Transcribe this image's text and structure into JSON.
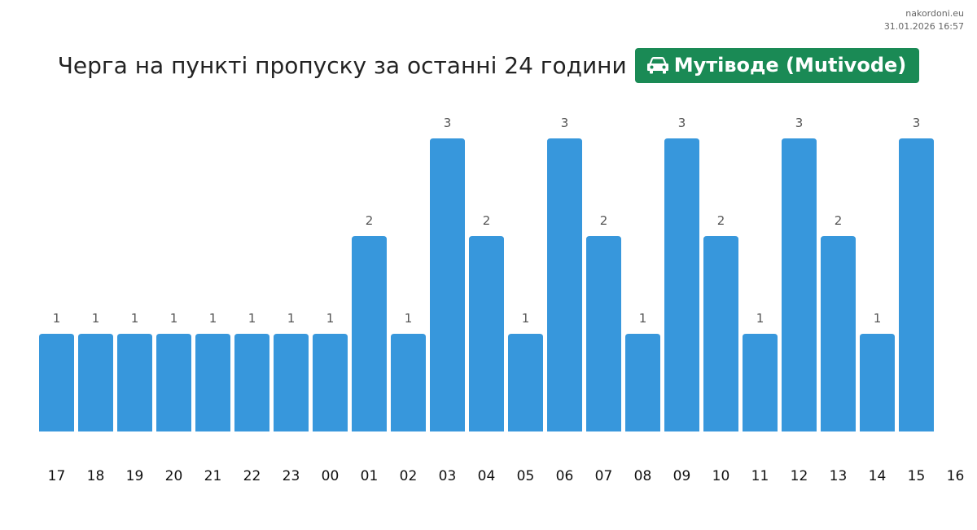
{
  "watermark": {
    "site": "nakordoni.eu",
    "timestamp": "31.01.2026 16:57"
  },
  "header": {
    "title": "Черга на пункті пропуску за останні 24 години",
    "badge_label": "Мутіводе (Mutivode)",
    "badge_icon": "car-icon",
    "badge_color": "#1a8a55"
  },
  "colors": {
    "bar": "#3797dc",
    "value_label": "#555555",
    "tick_label": "#111111"
  },
  "chart_data": {
    "type": "bar",
    "title": "Черга на пункті пропуску за останні 24 години",
    "xlabel": "",
    "ylabel": "",
    "categories": [
      "17",
      "18",
      "19",
      "20",
      "21",
      "22",
      "23",
      "00",
      "01",
      "02",
      "03",
      "04",
      "05",
      "06",
      "07",
      "08",
      "09",
      "10",
      "11",
      "12",
      "13",
      "14",
      "15"
    ],
    "x_tick_labels": [
      "17",
      "18",
      "19",
      "20",
      "21",
      "22",
      "23",
      "00",
      "01",
      "02",
      "03",
      "04",
      "05",
      "06",
      "07",
      "08",
      "09",
      "10",
      "11",
      "12",
      "13",
      "14",
      "15",
      "16"
    ],
    "values": [
      1,
      1,
      1,
      1,
      1,
      1,
      1,
      1,
      2,
      1,
      3,
      2,
      1,
      3,
      2,
      1,
      3,
      2,
      1,
      3,
      2,
      1,
      3
    ],
    "ylim": [
      0,
      3
    ],
    "grid": false,
    "legend": "none"
  }
}
